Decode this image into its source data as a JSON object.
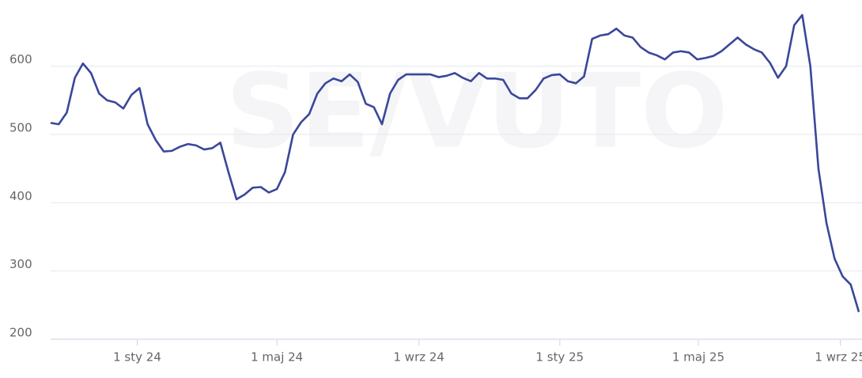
{
  "chart_data": {
    "type": "line",
    "watermark": "SE/VUTO",
    "x": [
      "2023-10-18",
      "2023-10-25",
      "2023-11-01",
      "2023-11-08",
      "2023-11-15",
      "2023-11-22",
      "2023-11-29",
      "2023-12-06",
      "2023-12-13",
      "2023-12-20",
      "2023-12-27",
      "2024-01-03",
      "2024-01-10",
      "2024-01-17",
      "2024-01-24",
      "2024-01-31",
      "2024-02-07",
      "2024-02-14",
      "2024-02-21",
      "2024-02-28",
      "2024-03-06",
      "2024-03-13",
      "2024-03-20",
      "2024-03-27",
      "2024-04-03",
      "2024-04-10",
      "2024-04-17",
      "2024-04-24",
      "2024-05-01",
      "2024-05-08",
      "2024-05-15",
      "2024-05-22",
      "2024-05-29",
      "2024-06-05",
      "2024-06-12",
      "2024-06-19",
      "2024-06-26",
      "2024-07-03",
      "2024-07-10",
      "2024-07-17",
      "2024-07-24",
      "2024-07-31",
      "2024-08-07",
      "2024-08-14",
      "2024-08-21",
      "2024-08-28",
      "2024-09-04",
      "2024-09-11",
      "2024-09-18",
      "2024-09-25",
      "2024-10-02",
      "2024-10-09",
      "2024-10-16",
      "2024-10-23",
      "2024-10-30",
      "2024-11-06",
      "2024-11-13",
      "2024-11-20",
      "2024-11-27",
      "2024-12-04",
      "2024-12-11",
      "2024-12-18",
      "2024-12-25",
      "2025-01-01",
      "2025-01-08",
      "2025-01-15",
      "2025-01-22",
      "2025-01-29",
      "2025-02-05",
      "2025-02-12",
      "2025-02-19",
      "2025-02-26",
      "2025-03-05",
      "2025-03-12",
      "2025-03-19",
      "2025-03-26",
      "2025-04-02",
      "2025-04-09",
      "2025-04-16",
      "2025-04-23",
      "2025-04-30",
      "2025-05-07",
      "2025-05-14",
      "2025-05-21",
      "2025-05-28",
      "2025-06-04",
      "2025-06-11",
      "2025-06-18",
      "2025-06-25",
      "2025-07-02",
      "2025-07-09",
      "2025-07-16",
      "2025-07-23",
      "2025-07-30",
      "2025-08-06",
      "2025-08-13",
      "2025-08-20",
      "2025-08-27",
      "2025-09-03",
      "2025-09-10",
      "2025-09-17"
    ],
    "series": [
      {
        "color": "#3a479a",
        "values": [
          517,
          515,
          532,
          583,
          604,
          590,
          560,
          550,
          547,
          538,
          558,
          568,
          515,
          492,
          475,
          476,
          482,
          486,
          484,
          478,
          480,
          488,
          445,
          405,
          412,
          422,
          423,
          415,
          420,
          445,
          500,
          518,
          530,
          560,
          575,
          582,
          578,
          588,
          577,
          545,
          540,
          515,
          560,
          580,
          588,
          588,
          588,
          588,
          584,
          586,
          590,
          583,
          578,
          590,
          582,
          582,
          580,
          560,
          553,
          553,
          565,
          582,
          587,
          588,
          578,
          575,
          585,
          640,
          645,
          647,
          655,
          645,
          642,
          628,
          620,
          616,
          610,
          620,
          622,
          620,
          610,
          612,
          615,
          622,
          632,
          642,
          632,
          625,
          620,
          605,
          583,
          600,
          660,
          675,
          600,
          450,
          370,
          318,
          292,
          280,
          240
        ]
      }
    ],
    "xlim": [
      "2023-10-18",
      "2025-09-17"
    ],
    "xticks": [
      {
        "value": "2024-01-01",
        "label": "1 sty 24"
      },
      {
        "value": "2024-05-01",
        "label": "1 maj 24"
      },
      {
        "value": "2024-09-01",
        "label": "1 wrz 24"
      },
      {
        "value": "2025-01-01",
        "label": "1 sty 25"
      },
      {
        "value": "2025-05-01",
        "label": "1 maj 25"
      },
      {
        "value": "2025-09-01",
        "label": "1 wrz 25"
      }
    ],
    "ylim": [
      200,
      697
    ],
    "yticks": [
      200,
      300,
      400,
      500,
      600
    ],
    "grid": true
  }
}
